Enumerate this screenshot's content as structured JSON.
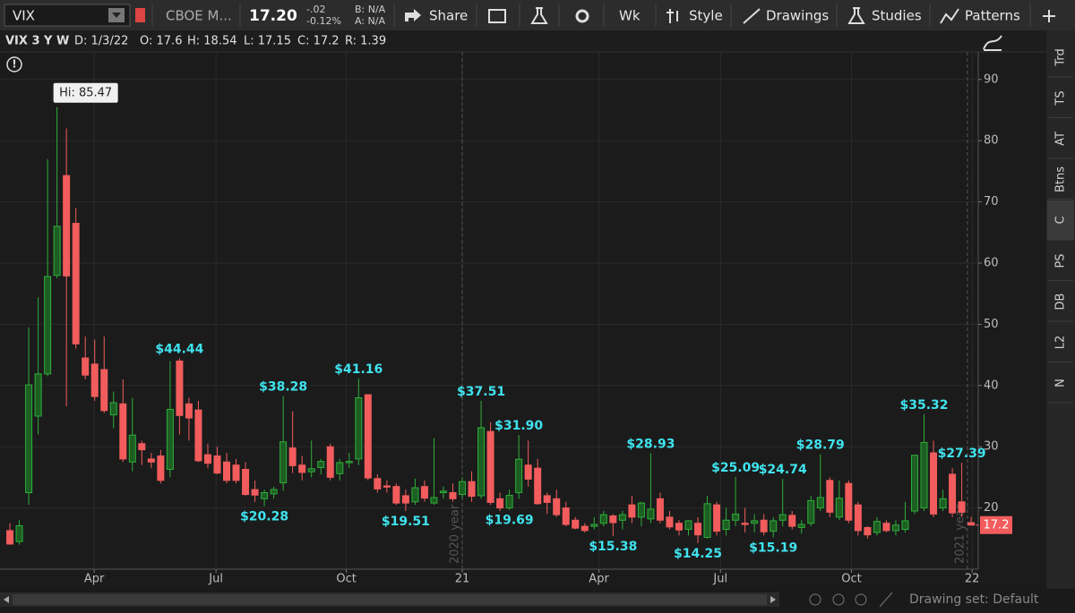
{
  "toolbar": {
    "symbol": "VIX",
    "description": "CBOE M...",
    "last": "17.20",
    "net_change": "-.02",
    "pct_change": "-0.12%",
    "bid": "B: N/A",
    "ask": "A: N/A",
    "buttons": [
      "Share",
      "Wk",
      "Style",
      "Drawings",
      "Studies",
      "Patterns"
    ]
  },
  "header": {
    "title": "VIX 3 Y W",
    "date": "D: 1/3/22",
    "open": "O: 17.6",
    "high": "H: 18.54",
    "low": "L: 17.15",
    "close": "C: 17.2",
    "range": "R: 1.39"
  },
  "sidebar_tabs": [
    "Trd",
    "TS",
    "AT",
    "Btns",
    "C",
    "PS",
    "DB",
    "L2",
    "N"
  ],
  "footer": {
    "drawing_set": "Drawing set: Default"
  },
  "chart_data": {
    "type": "candlestick",
    "open": [
      16.3,
      14.5,
      22.5,
      35.0,
      41.9,
      58.0,
      74.3,
      66.5,
      44.5,
      43.5,
      42.6,
      35.2,
      37.0,
      27.5,
      30.5,
      28.0,
      28.5,
      26.3,
      44.0,
      37.0,
      36.0,
      28.7,
      28.5,
      27.5,
      27.0,
      26.3,
      23.0,
      21.5,
      22.3,
      24.1,
      29.8,
      27.0,
      25.9,
      26.6,
      30.0,
      25.6,
      27.4,
      28.0,
      38.5,
      24.8,
      23.6,
      23.5,
      22.0,
      21.0,
      23.5,
      20.8,
      22.5,
      22.5,
      22.2,
      24.3,
      22.0,
      32.5,
      21.5,
      20.0,
      22.5,
      27.0,
      26.5,
      22.0,
      21.5,
      20.0,
      18.0,
      17.0,
      17.0,
      17.5,
      18.7,
      18.0,
      20.5,
      18.5,
      18.2,
      21.5,
      18.5,
      17.5,
      16.5,
      17.5,
      15.2,
      20.5,
      16.5,
      18.0,
      17.5,
      17.5,
      18.0,
      16.2,
      18.0,
      18.8,
      16.8,
      17.5,
      20.0,
      24.5,
      18.5,
      24.0,
      20.5,
      16.8,
      16.0,
      17.5,
      16.3,
      16.5,
      19.5,
      20.0,
      29.0,
      20.0,
      25.5,
      21.0,
      17.6
    ],
    "high": [
      17.5,
      18.0,
      49.5,
      54.4,
      77.0,
      85.47,
      82.0,
      69.0,
      48.0,
      47.5,
      48.0,
      39.0,
      41.0,
      38.0,
      31.0,
      29.0,
      29.5,
      44.0,
      44.44,
      38.0,
      37.5,
      30.5,
      30.0,
      29.0,
      28.0,
      27.5,
      24.5,
      23.0,
      23.5,
      38.28,
      35.8,
      28.5,
      31.0,
      28.0,
      30.5,
      28.0,
      29.0,
      41.16,
      38.5,
      25.5,
      24.5,
      24.0,
      23.0,
      24.8,
      24.5,
      31.4,
      23.5,
      24.0,
      25.0,
      26.0,
      37.51,
      34.0,
      22.5,
      23.0,
      31.9,
      31.0,
      28.0,
      22.5,
      23.0,
      21.0,
      18.5,
      17.5,
      18.5,
      19.5,
      19.0,
      19.5,
      22.0,
      21.0,
      28.93,
      22.5,
      19.5,
      18.0,
      18.0,
      18.5,
      22.0,
      21.0,
      20.0,
      25.09,
      20.0,
      19.0,
      19.0,
      18.5,
      24.74,
      19.5,
      18.0,
      22.0,
      28.79,
      25.0,
      24.5,
      24.5,
      21.0,
      17.0,
      18.5,
      18.0,
      18.0,
      21.0,
      28.7,
      35.32,
      31.0,
      23.0,
      26.5,
      27.39,
      18.54
    ],
    "low": [
      14.0,
      14.0,
      20.5,
      32.0,
      41.5,
      57.5,
      36.6,
      46.0,
      41.0,
      37.5,
      35.5,
      33.0,
      27.5,
      26.0,
      27.0,
      26.5,
      24.0,
      25.0,
      32.0,
      31.0,
      27.5,
      26.5,
      25.5,
      24.0,
      24.0,
      22.0,
      21.0,
      20.28,
      21.5,
      22.8,
      25.7,
      24.5,
      25.0,
      25.5,
      24.5,
      24.5,
      26.5,
      27.0,
      24.5,
      22.5,
      22.5,
      20.5,
      19.51,
      20.5,
      21.0,
      20.5,
      21.5,
      21.0,
      21.5,
      21.0,
      21.5,
      20.5,
      19.5,
      19.69,
      21.5,
      23.5,
      20.5,
      19.0,
      18.5,
      17.0,
      16.5,
      16.0,
      16.5,
      17.0,
      15.38,
      16.5,
      17.5,
      17.0,
      17.5,
      17.5,
      16.5,
      15.5,
      15.5,
      14.25,
      15.0,
      15.5,
      15.5,
      17.0,
      16.0,
      16.0,
      15.5,
      15.19,
      17.0,
      16.5,
      15.8,
      17.0,
      19.5,
      18.5,
      18.0,
      17.5,
      15.5,
      15.0,
      15.5,
      16.0,
      15.5,
      16.0,
      19.0,
      19.5,
      18.5,
      19.5,
      18.5,
      18.5,
      17.15
    ],
    "close": [
      14.1,
      17.1,
      40.1,
      41.9,
      57.8,
      66.0,
      57.9,
      46.8,
      41.7,
      38.2,
      35.9,
      37.2,
      28.0,
      31.9,
      29.5,
      27.5,
      24.5,
      36.1,
      35.1,
      34.7,
      27.7,
      27.3,
      25.7,
      24.5,
      24.5,
      22.2,
      22.1,
      22.5,
      23.0,
      30.8,
      26.9,
      25.8,
      26.4,
      27.6,
      25.0,
      27.4,
      27.6,
      38.0,
      24.9,
      23.1,
      23.4,
      20.8,
      20.8,
      23.3,
      21.6,
      21.7,
      22.75,
      21.5,
      24.3,
      21.9,
      33.1,
      20.9,
      20.0,
      22.05,
      27.95,
      24.7,
      20.7,
      20.9,
      18.9,
      17.3,
      16.7,
      16.3,
      17.3,
      18.9,
      17.6,
      18.9,
      18.5,
      20.8,
      19.8,
      18.0,
      16.9,
      16.4,
      17.9,
      15.6,
      20.7,
      16.2,
      18.0,
      19.0,
      17.3,
      17.9,
      16.1,
      17.9,
      18.9,
      17.0,
      17.3,
      21.2,
      21.7,
      19.3,
      21.6,
      18.0,
      16.3,
      15.6,
      17.8,
      16.3,
      17.2,
      17.9,
      28.6,
      30.7,
      19.0,
      21.5,
      19.2,
      19.3,
      17.2
    ],
    "xlim": [
      -1.05,
      102.75
    ],
    "xticks": [
      {
        "value": 8.94,
        "label": "Apr"
      },
      {
        "value": 21.87,
        "label": "Jul"
      },
      {
        "value": 35.7,
        "label": "Oct"
      },
      {
        "value": 48.0,
        "label": "21"
      },
      {
        "value": 62.5,
        "label": "Apr"
      },
      {
        "value": 75.4,
        "label": "Jul"
      },
      {
        "value": 89.3,
        "label": "Oct"
      },
      {
        "value": 102.1,
        "label": "22"
      }
    ],
    "ylim": [
      10,
      94.5
    ],
    "yticks": [
      20,
      30,
      40,
      50,
      60,
      70,
      80,
      90
    ],
    "year_markers": [
      {
        "x": 48.0,
        "label": "2020 year"
      },
      {
        "x": 101.6,
        "label": "2021 year"
      }
    ],
    "high_label": {
      "x": 5,
      "value": 85.47,
      "label": "Hi: 85.47"
    },
    "annotations": [
      {
        "x": 18,
        "value": 44.44,
        "label": "$44.44",
        "position": "above"
      },
      {
        "x": 27,
        "value": 20.28,
        "label": "$20.28",
        "position": "below"
      },
      {
        "x": 29,
        "value": 38.28,
        "label": "$38.28",
        "position": "above"
      },
      {
        "x": 37,
        "value": 41.16,
        "label": "$41.16",
        "position": "above"
      },
      {
        "x": 42,
        "value": 19.51,
        "label": "$19.51",
        "position": "below"
      },
      {
        "x": 50,
        "value": 37.51,
        "label": "$37.51",
        "position": "above"
      },
      {
        "x": 53,
        "value": 19.69,
        "label": "$19.69",
        "position": "below"
      },
      {
        "x": 54,
        "value": 31.9,
        "label": "$31.90",
        "position": "above"
      },
      {
        "x": 64,
        "value": 15.38,
        "label": "$15.38",
        "position": "below"
      },
      {
        "x": 68,
        "value": 28.93,
        "label": "$28.93",
        "position": "above"
      },
      {
        "x": 73,
        "value": 14.25,
        "label": "$14.25",
        "position": "below"
      },
      {
        "x": 77,
        "value": 25.09,
        "label": "$25.09",
        "position": "above"
      },
      {
        "x": 81,
        "value": 15.19,
        "label": "$15.19",
        "position": "below"
      },
      {
        "x": 82,
        "value": 24.74,
        "label": "$24.74",
        "position": "above"
      },
      {
        "x": 86,
        "value": 28.79,
        "label": "$28.79",
        "position": "above"
      },
      {
        "x": 97,
        "value": 35.32,
        "label": "$35.32",
        "position": "above"
      },
      {
        "x": 101,
        "value": 27.39,
        "label": "$27.39",
        "position": "above"
      }
    ],
    "up_color": "#2fae3a",
    "down_color": "#f25c5c",
    "annotation_color": "#3fe3ee",
    "grid": true
  }
}
